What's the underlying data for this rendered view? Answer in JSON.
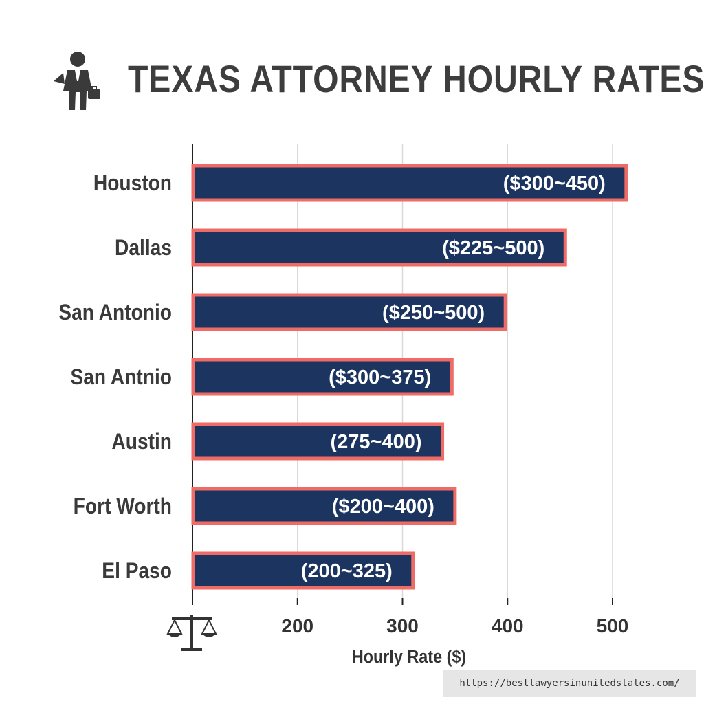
{
  "title": "TEXAS ATTORNEY HOURLY RATES",
  "source_url": "https://bestlawyersinunitedstates.com/",
  "icons": {
    "title_icon": "businessman-with-briefcase-icon",
    "axis_icon": "scales-of-justice-icon"
  },
  "colors": {
    "bar_fill": "#1c3560",
    "bar_border": "#ef6b66",
    "title": "#3d3d3d",
    "grid": "#d9d9d9"
  },
  "chart_data": {
    "type": "bar",
    "orientation": "horizontal",
    "title": "TEXAS ATTORNEY HOURLY RATES",
    "xlabel": "Hourly Rate ($)",
    "ylabel": "",
    "xlim": [
      100,
      500
    ],
    "xticks": [
      200,
      300,
      400,
      500
    ],
    "grid": true,
    "categories": [
      "Houston",
      "Dallas",
      "San Antonio",
      "San Antnio",
      "Austin",
      "Fort Worth",
      "El Paso"
    ],
    "values": [
      513,
      455,
      398,
      347,
      338,
      350,
      310
    ],
    "data_labels": [
      "($300~450)",
      "($225~500)",
      "($250~500)",
      "($300~375)",
      "(275~400)",
      "($200~400)",
      "(200~325)"
    ]
  }
}
